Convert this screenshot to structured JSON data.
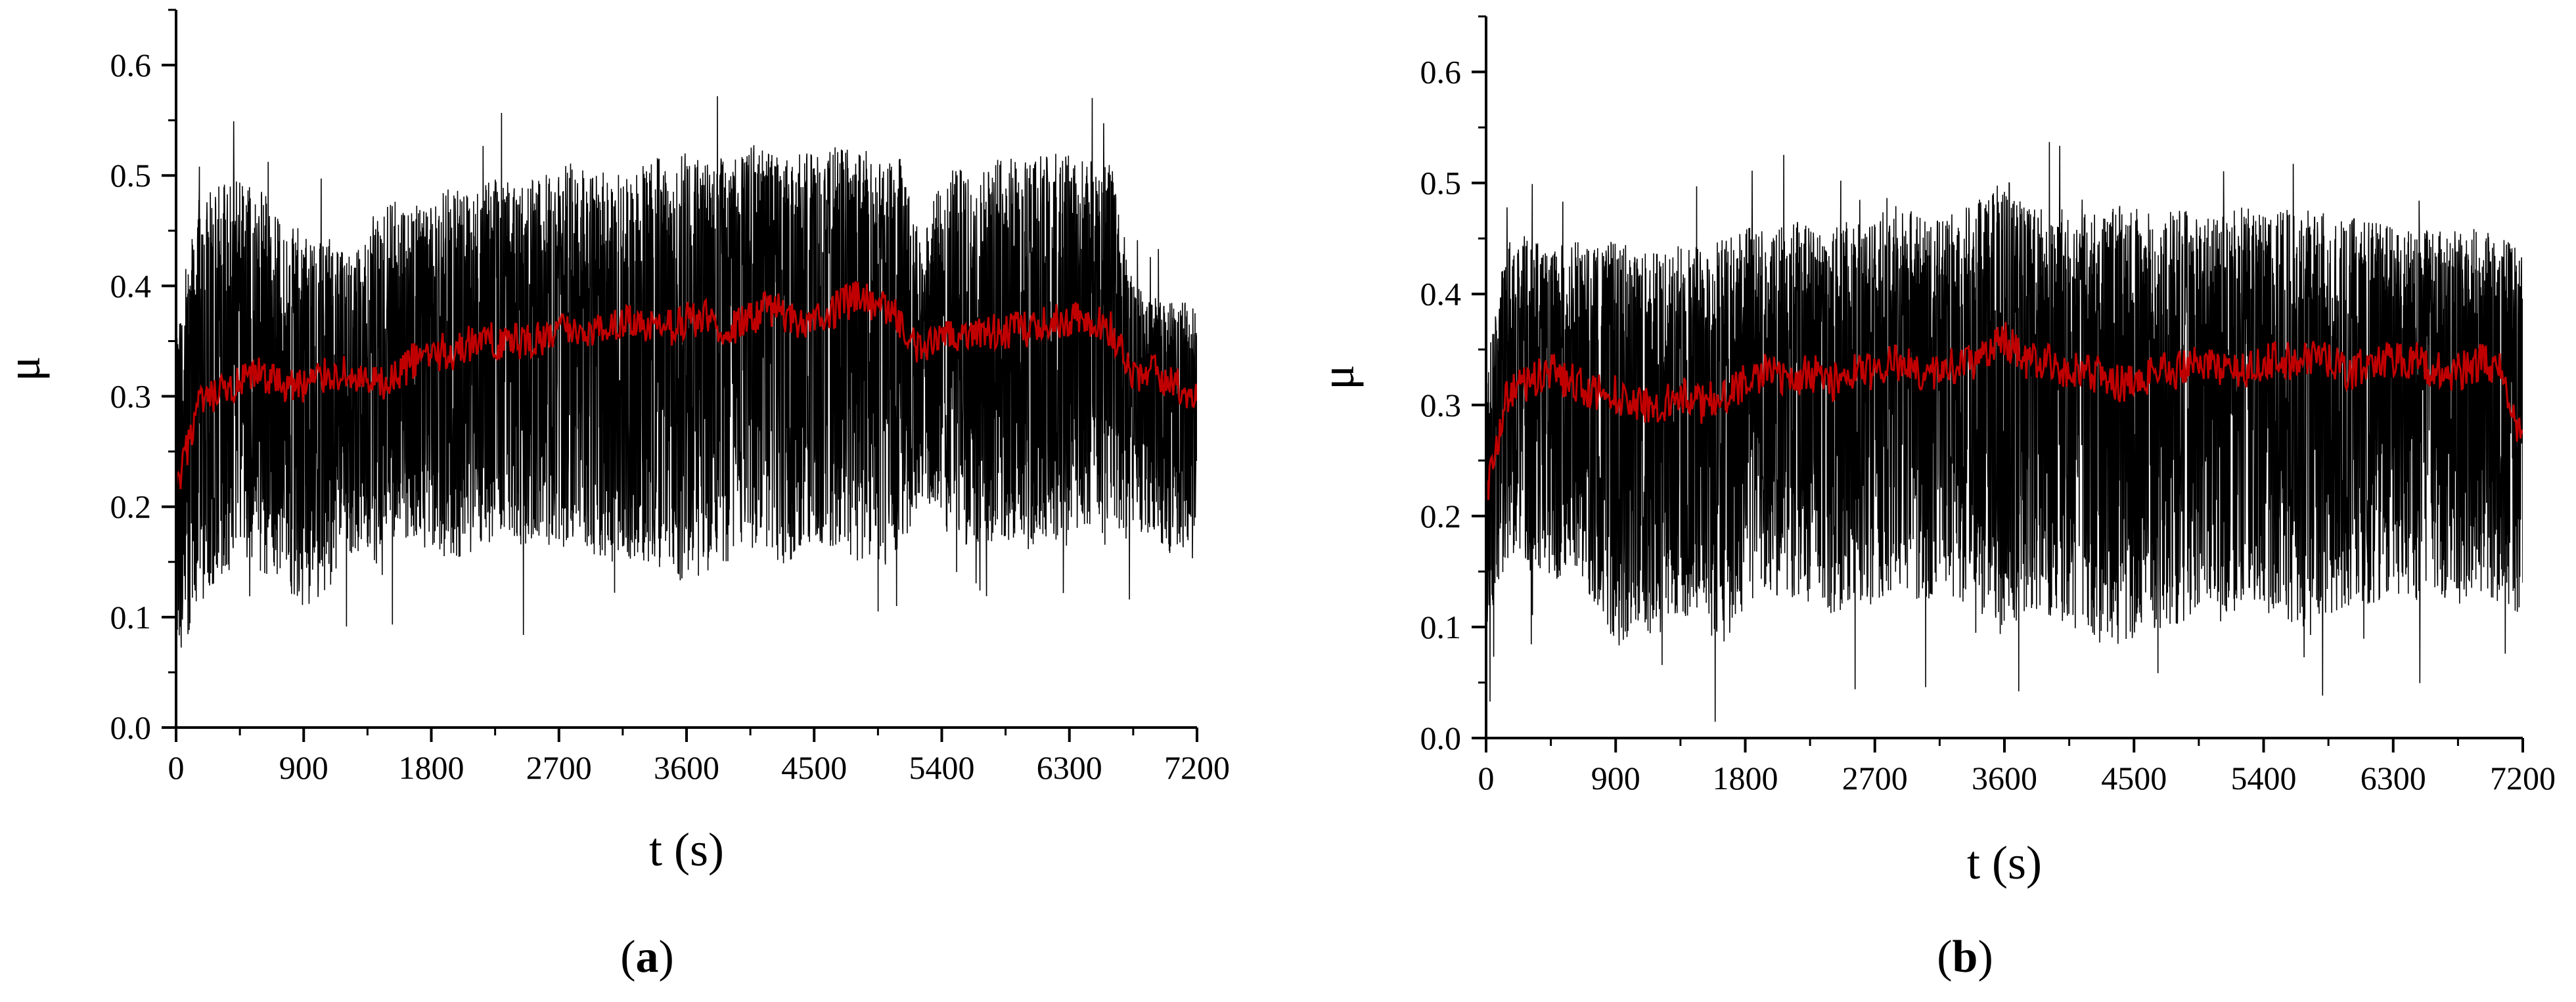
{
  "chart_data": [
    {
      "type": "line",
      "panel_label": "(a)",
      "panel_letter": "a",
      "xlabel": "t (s)",
      "ylabel": "μ",
      "xlim": [
        0,
        7200
      ],
      "ylim": [
        0.0,
        0.65
      ],
      "xticks": [
        0,
        900,
        1800,
        2700,
        3600,
        4500,
        5400,
        6300,
        7200
      ],
      "yticks": [
        0.0,
        0.1,
        0.2,
        0.3,
        0.4,
        0.5,
        0.6
      ],
      "xtick_labels": [
        "0",
        "900",
        "1800",
        "2700",
        "3600",
        "4500",
        "5400",
        "6300",
        "7200"
      ],
      "ytick_labels": [
        "0.0",
        "0.1",
        "0.2",
        "0.3",
        "0.4",
        "0.5",
        "0.6"
      ],
      "grid": false,
      "series": [
        {
          "role": "raw",
          "color": "#000000",
          "x": [
            0,
            150,
            300,
            450,
            600,
            750,
            900,
            1050,
            1200,
            1350,
            1500,
            1650,
            1800,
            1950,
            2100,
            2250,
            2400,
            2550,
            2700,
            2850,
            3000,
            3150,
            3300,
            3450,
            3600,
            3750,
            3900,
            4050,
            4200,
            4350,
            4500,
            4650,
            4800,
            4950,
            5100,
            5250,
            5400,
            5550,
            5700,
            5850,
            6000,
            6150,
            6300,
            6450,
            6600,
            6750,
            6900,
            7050,
            7200
          ],
          "upper": [
            0.35,
            0.48,
            0.49,
            0.5,
            0.49,
            0.46,
            0.45,
            0.44,
            0.43,
            0.44,
            0.48,
            0.48,
            0.48,
            0.49,
            0.49,
            0.5,
            0.49,
            0.5,
            0.51,
            0.51,
            0.51,
            0.5,
            0.51,
            0.52,
            0.52,
            0.51,
            0.52,
            0.53,
            0.52,
            0.52,
            0.52,
            0.53,
            0.52,
            0.51,
            0.52,
            0.44,
            0.5,
            0.51,
            0.51,
            0.52,
            0.52,
            0.52,
            0.52,
            0.52,
            0.51,
            0.4,
            0.39,
            0.39,
            0.38
          ],
          "lower": [
            0.05,
            0.11,
            0.13,
            0.15,
            0.14,
            0.13,
            0.1,
            0.12,
            0.15,
            0.16,
            0.17,
            0.17,
            0.16,
            0.15,
            0.16,
            0.17,
            0.16,
            0.16,
            0.16,
            0.17,
            0.15,
            0.15,
            0.15,
            0.14,
            0.13,
            0.14,
            0.15,
            0.16,
            0.15,
            0.14,
            0.17,
            0.16,
            0.15,
            0.14,
            0.15,
            0.21,
            0.18,
            0.16,
            0.16,
            0.17,
            0.16,
            0.17,
            0.16,
            0.18,
            0.17,
            0.18,
            0.17,
            0.15,
            0.18
          ]
        },
        {
          "role": "average",
          "color": "#c00000",
          "x": [
            0,
            150,
            300,
            450,
            600,
            750,
            900,
            1050,
            1200,
            1350,
            1500,
            1650,
            1800,
            1950,
            2100,
            2250,
            2400,
            2550,
            2700,
            2850,
            3000,
            3150,
            3300,
            3450,
            3600,
            3750,
            3900,
            4050,
            4200,
            4350,
            4500,
            4650,
            4800,
            4950,
            5100,
            5250,
            5400,
            5550,
            5700,
            5850,
            6000,
            6150,
            6300,
            6450,
            6600,
            6750,
            6900,
            7050,
            7200
          ],
          "values": [
            0.21,
            0.29,
            0.3,
            0.31,
            0.32,
            0.31,
            0.31,
            0.32,
            0.32,
            0.31,
            0.31,
            0.33,
            0.34,
            0.34,
            0.35,
            0.35,
            0.35,
            0.35,
            0.36,
            0.36,
            0.36,
            0.37,
            0.36,
            0.36,
            0.37,
            0.37,
            0.36,
            0.37,
            0.38,
            0.37,
            0.37,
            0.38,
            0.39,
            0.38,
            0.37,
            0.34,
            0.35,
            0.36,
            0.36,
            0.36,
            0.36,
            0.37,
            0.37,
            0.37,
            0.36,
            0.32,
            0.32,
            0.31,
            0.3
          ]
        }
      ]
    },
    {
      "type": "line",
      "panel_label": "(b)",
      "panel_letter": "b",
      "xlabel": "t (s)",
      "ylabel": "μ",
      "xlim": [
        0,
        7200
      ],
      "ylim": [
        0.0,
        0.65
      ],
      "xticks": [
        0,
        900,
        1800,
        2700,
        3600,
        4500,
        5400,
        6300,
        7200
      ],
      "yticks": [
        0.0,
        0.1,
        0.2,
        0.3,
        0.4,
        0.5,
        0.6
      ],
      "xtick_labels": [
        "0",
        "900",
        "1800",
        "2700",
        "3600",
        "4500",
        "5400",
        "6300",
        "7200"
      ],
      "ytick_labels": [
        "0.0",
        "0.1",
        "0.2",
        "0.3",
        "0.4",
        "0.5",
        "0.6"
      ],
      "grid": false,
      "series": [
        {
          "role": "raw",
          "color": "#000000",
          "x": [
            0,
            150,
            300,
            450,
            600,
            750,
            900,
            1050,
            1200,
            1350,
            1500,
            1650,
            1800,
            1950,
            2100,
            2250,
            2400,
            2550,
            2700,
            2850,
            3000,
            3150,
            3300,
            3450,
            3600,
            3750,
            3900,
            4050,
            4200,
            4350,
            4500,
            4650,
            4800,
            4950,
            5100,
            5250,
            5400,
            5550,
            5700,
            5850,
            6000,
            6150,
            6300,
            6450,
            6600,
            6750,
            6900,
            7050,
            7200
          ],
          "upper": [
            0.33,
            0.46,
            0.45,
            0.44,
            0.45,
            0.44,
            0.45,
            0.44,
            0.44,
            0.45,
            0.44,
            0.45,
            0.46,
            0.46,
            0.47,
            0.46,
            0.46,
            0.47,
            0.47,
            0.48,
            0.47,
            0.47,
            0.48,
            0.49,
            0.51,
            0.48,
            0.48,
            0.48,
            0.47,
            0.48,
            0.48,
            0.47,
            0.48,
            0.47,
            0.47,
            0.48,
            0.47,
            0.48,
            0.48,
            0.47,
            0.47,
            0.47,
            0.46,
            0.46,
            0.46,
            0.46,
            0.46,
            0.45,
            0.44
          ],
          "lower": [
            0.1,
            0.16,
            0.15,
            0.14,
            0.15,
            0.12,
            0.08,
            0.1,
            0.09,
            0.11,
            0.1,
            0.08,
            0.12,
            0.13,
            0.12,
            0.12,
            0.11,
            0.12,
            0.12,
            0.13,
            0.12,
            0.13,
            0.12,
            0.11,
            0.1,
            0.11,
            0.11,
            0.1,
            0.09,
            0.08,
            0.09,
            0.09,
            0.1,
            0.11,
            0.1,
            0.12,
            0.11,
            0.1,
            0.1,
            0.11,
            0.12,
            0.12,
            0.13,
            0.12,
            0.12,
            0.12,
            0.13,
            0.12,
            0.1
          ]
        },
        {
          "role": "average",
          "color": "#c00000",
          "x": [
            0,
            150,
            300,
            450,
            600,
            750,
            900,
            1050,
            1200,
            1350,
            1500,
            1650,
            1800,
            1950,
            2100,
            2250,
            2400,
            2550,
            2700,
            2850,
            3000,
            3150,
            3300,
            3450,
            3600,
            3750,
            3900,
            4050,
            4200,
            4350,
            4500,
            4650,
            4800,
            4950,
            5100,
            5250,
            5400,
            5550,
            5700,
            5850,
            6000,
            6150,
            6300,
            6450,
            6600,
            6750,
            6900,
            7050,
            7200
          ],
          "values": [
            0.22,
            0.31,
            0.32,
            0.33,
            0.32,
            0.31,
            0.31,
            0.3,
            0.3,
            0.31,
            0.3,
            0.31,
            0.32,
            0.33,
            0.32,
            0.33,
            0.32,
            0.33,
            0.33,
            0.34,
            0.33,
            0.33,
            0.34,
            0.34,
            0.36,
            0.34,
            0.34,
            0.33,
            0.33,
            0.32,
            0.32,
            0.33,
            0.33,
            0.34,
            0.33,
            0.33,
            0.34,
            0.34,
            0.34,
            0.34,
            0.33,
            0.34,
            0.34,
            0.34,
            0.33,
            0.33,
            0.34,
            0.33,
            0.26
          ]
        }
      ]
    }
  ]
}
